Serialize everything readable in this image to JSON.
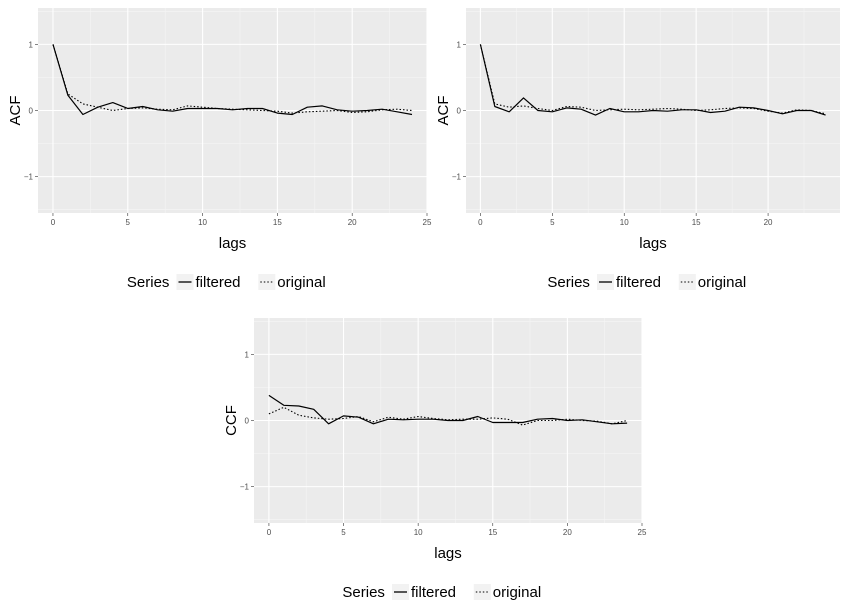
{
  "chart_data": [
    {
      "type": "line",
      "xlabel": "lags",
      "ylabel": "ACF",
      "xlim": [
        -1,
        25
      ],
      "ylim": [
        -1.55,
        1.55
      ],
      "x_ticks": [
        0,
        5,
        10,
        15,
        20,
        25
      ],
      "y_ticks": [
        -1,
        0,
        1
      ],
      "grid": true,
      "legend_position": "bottom",
      "legend": {
        "title": "Series",
        "items": [
          "filtered",
          "original"
        ]
      },
      "x": [
        0,
        1,
        2,
        3,
        4,
        5,
        6,
        7,
        8,
        9,
        10,
        11,
        12,
        13,
        14,
        15,
        16,
        17,
        18,
        19,
        20,
        21,
        22,
        23,
        24
      ],
      "series": [
        {
          "name": "filtered",
          "linestyle": "solid",
          "values": [
            1.0,
            0.23,
            -0.06,
            0.05,
            0.12,
            0.03,
            0.06,
            0.01,
            -0.01,
            0.03,
            0.03,
            0.03,
            0.01,
            0.03,
            0.03,
            -0.04,
            -0.06,
            0.05,
            0.07,
            0.01,
            -0.01,
            0.0,
            0.02,
            -0.02,
            -0.06
          ]
        },
        {
          "name": "original",
          "linestyle": "dotted",
          "values": [
            1.0,
            0.25,
            0.1,
            0.05,
            0.0,
            0.03,
            0.04,
            0.02,
            0.01,
            0.07,
            0.05,
            0.03,
            0.02,
            0.01,
            0.0,
            -0.01,
            -0.04,
            -0.02,
            -0.01,
            0.0,
            -0.03,
            -0.02,
            0.01,
            0.02,
            0.0
          ]
        }
      ]
    },
    {
      "type": "line",
      "xlabel": "lags",
      "ylabel": "ACF",
      "xlim": [
        -1,
        25
      ],
      "ylim": [
        -1.55,
        1.55
      ],
      "x_ticks": [
        0,
        5,
        10,
        15,
        20
      ],
      "y_ticks": [
        -1,
        0,
        1
      ],
      "grid": true,
      "legend_position": "bottom",
      "legend": {
        "title": "Series",
        "items": [
          "filtered",
          "original"
        ]
      },
      "x": [
        0,
        1,
        2,
        3,
        4,
        5,
        6,
        7,
        8,
        9,
        10,
        11,
        12,
        13,
        14,
        15,
        16,
        17,
        18,
        19,
        20,
        21,
        22,
        23,
        24
      ],
      "series": [
        {
          "name": "filtered",
          "linestyle": "solid",
          "values": [
            1.0,
            0.06,
            -0.02,
            0.19,
            0.0,
            -0.02,
            0.04,
            0.02,
            -0.07,
            0.03,
            -0.02,
            -0.02,
            0.0,
            -0.01,
            0.01,
            0.01,
            -0.03,
            -0.01,
            0.05,
            0.04,
            0.0,
            -0.05,
            0.0,
            0.0,
            -0.07
          ]
        },
        {
          "name": "original",
          "linestyle": "dotted",
          "values": [
            1.0,
            0.1,
            0.05,
            0.07,
            0.03,
            0.0,
            0.06,
            0.05,
            0.0,
            0.01,
            0.02,
            0.01,
            0.02,
            0.03,
            0.02,
            0.0,
            0.01,
            0.03,
            0.04,
            0.03,
            -0.01,
            -0.04,
            0.01,
            0.0,
            -0.05
          ]
        }
      ]
    },
    {
      "type": "line",
      "xlabel": "lags",
      "ylabel": "CCF",
      "xlim": [
        -1,
        25
      ],
      "ylim": [
        -1.55,
        1.55
      ],
      "x_ticks": [
        0,
        5,
        10,
        15,
        20,
        25
      ],
      "y_ticks": [
        -1,
        0,
        1
      ],
      "grid": true,
      "legend_position": "bottom",
      "legend": {
        "title": "Series",
        "items": [
          "filtered",
          "original"
        ]
      },
      "x": [
        0,
        1,
        2,
        3,
        4,
        5,
        6,
        7,
        8,
        9,
        10,
        11,
        12,
        13,
        14,
        15,
        16,
        17,
        18,
        19,
        20,
        21,
        22,
        23,
        24
      ],
      "series": [
        {
          "name": "filtered",
          "linestyle": "solid",
          "values": [
            0.38,
            0.23,
            0.22,
            0.17,
            -0.05,
            0.07,
            0.05,
            -0.05,
            0.02,
            0.01,
            0.02,
            0.02,
            0.0,
            0.0,
            0.06,
            -0.03,
            -0.03,
            -0.03,
            0.02,
            0.03,
            0.0,
            0.01,
            -0.02,
            -0.05,
            -0.04
          ]
        },
        {
          "name": "original",
          "linestyle": "dotted",
          "values": [
            0.1,
            0.2,
            0.08,
            0.04,
            0.02,
            0.03,
            0.06,
            -0.02,
            0.05,
            0.02,
            0.06,
            0.03,
            0.01,
            0.02,
            0.02,
            0.04,
            0.02,
            -0.07,
            0.0,
            0.0,
            0.02,
            0.0,
            -0.01,
            -0.05,
            0.0
          ]
        }
      ]
    }
  ]
}
